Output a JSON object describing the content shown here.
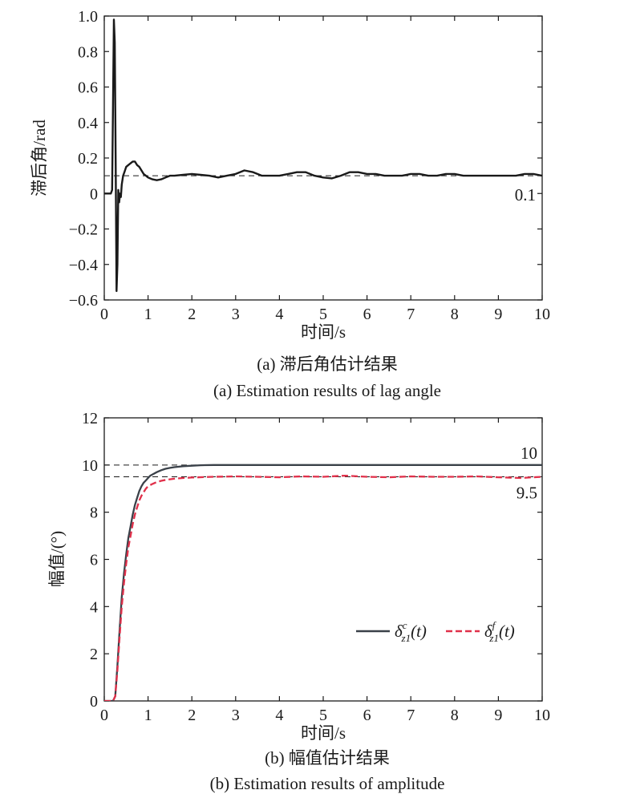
{
  "chart_data": [
    {
      "type": "line",
      "title": "",
      "xlabel": "时间/s",
      "ylabel": "滞后角/rad",
      "xlim": [
        0,
        10
      ],
      "ylim": [
        -0.6,
        1.0
      ],
      "xticks": [
        "0",
        "1",
        "2",
        "3",
        "4",
        "5",
        "6",
        "7",
        "8",
        "9",
        "10"
      ],
      "yticks": [
        "−0.6",
        "−0.4",
        "−0.2",
        "0",
        "0.2",
        "0.4",
        "0.6",
        "0.8",
        "1.0"
      ],
      "caption_cn": "(a) 滞后角估计结果",
      "caption_en": "(a) Estimation results of lag angle",
      "reference_line": {
        "y": 0.1,
        "label": "0.1"
      },
      "series": [
        {
          "color": "#1a1a1a",
          "x": [
            0,
            0.15,
            0.18,
            0.2,
            0.22,
            0.24,
            0.26,
            0.28,
            0.3,
            0.32,
            0.34,
            0.36,
            0.38,
            0.4,
            0.43,
            0.46,
            0.5,
            0.55,
            0.6,
            0.65,
            0.7,
            0.75,
            0.8,
            0.85,
            0.9,
            0.95,
            1.0,
            1.1,
            1.2,
            1.3,
            1.4,
            1.5,
            1.6,
            1.8,
            2.0,
            2.2,
            2.4,
            2.6,
            2.8,
            3.0,
            3.2,
            3.4,
            3.6,
            3.8,
            4.0,
            4.2,
            4.4,
            4.6,
            4.8,
            5.0,
            5.2,
            5.4,
            5.6,
            5.8,
            6.0,
            6.2,
            6.4,
            6.6,
            6.8,
            7.0,
            7.2,
            7.4,
            7.6,
            7.8,
            8.0,
            8.2,
            8.4,
            8.6,
            8.8,
            9.0,
            9.2,
            9.4,
            9.6,
            9.8,
            10.0
          ],
          "y": [
            0.0,
            0.0,
            0.02,
            0.5,
            0.98,
            0.85,
            0.2,
            -0.55,
            -0.4,
            0.02,
            -0.05,
            0.0,
            -0.02,
            0.05,
            0.1,
            0.12,
            0.15,
            0.16,
            0.17,
            0.18,
            0.18,
            0.16,
            0.15,
            0.13,
            0.11,
            0.1,
            0.09,
            0.08,
            0.075,
            0.08,
            0.09,
            0.1,
            0.1,
            0.105,
            0.11,
            0.105,
            0.1,
            0.09,
            0.1,
            0.11,
            0.13,
            0.12,
            0.1,
            0.1,
            0.1,
            0.11,
            0.12,
            0.12,
            0.1,
            0.09,
            0.085,
            0.1,
            0.12,
            0.12,
            0.11,
            0.11,
            0.1,
            0.1,
            0.1,
            0.11,
            0.11,
            0.1,
            0.1,
            0.11,
            0.11,
            0.1,
            0.1,
            0.1,
            0.1,
            0.1,
            0.1,
            0.1,
            0.11,
            0.11,
            0.1
          ]
        }
      ]
    },
    {
      "type": "line",
      "title": "",
      "xlabel": "时间/s",
      "ylabel": "幅值/(°)",
      "xlim": [
        0,
        10
      ],
      "ylim": [
        0,
        12
      ],
      "xticks": [
        "0",
        "1",
        "2",
        "3",
        "4",
        "5",
        "6",
        "7",
        "8",
        "9",
        "10"
      ],
      "yticks": [
        "0",
        "2",
        "4",
        "6",
        "8",
        "10",
        "12"
      ],
      "caption_cn": "(b) 幅值估计结果",
      "caption_en": "(b) Estimation results of amplitude",
      "reference_lines": [
        {
          "y": 10,
          "label": "10"
        },
        {
          "y": 9.5,
          "label": "9.5"
        }
      ],
      "legend": {
        "position": "lower-right"
      },
      "series": [
        {
          "name": "δ_z1^c(t)",
          "color": "#3a4149",
          "style": "solid",
          "x": [
            0,
            0.2,
            0.25,
            0.3,
            0.35,
            0.4,
            0.45,
            0.5,
            0.55,
            0.6,
            0.65,
            0.7,
            0.75,
            0.8,
            0.85,
            0.9,
            0.95,
            1.0,
            1.05,
            1.1,
            1.2,
            1.3,
            1.4,
            1.5,
            1.6,
            1.8,
            2.0,
            2.2,
            2.5,
            3.0,
            4.0,
            5.0,
            6.0,
            7.0,
            8.0,
            9.0,
            10.0
          ],
          "y": [
            0,
            0,
            0.2,
            1.5,
            3.0,
            4.4,
            5.4,
            6.2,
            6.9,
            7.4,
            7.9,
            8.3,
            8.6,
            8.9,
            9.1,
            9.25,
            9.35,
            9.45,
            9.55,
            9.6,
            9.7,
            9.78,
            9.84,
            9.88,
            9.91,
            9.95,
            9.97,
            9.99,
            10.0,
            10.0,
            10.0,
            10.0,
            10.0,
            10.0,
            10.0,
            10.0,
            10.0
          ]
        },
        {
          "name": "δ_z1^f(t)",
          "color": "#e0304a",
          "style": "dashed",
          "x": [
            0,
            0.2,
            0.25,
            0.3,
            0.35,
            0.4,
            0.45,
            0.5,
            0.55,
            0.6,
            0.65,
            0.7,
            0.75,
            0.8,
            0.85,
            0.9,
            0.95,
            1.0,
            1.1,
            1.2,
            1.3,
            1.4,
            1.6,
            1.8,
            2.0,
            2.5,
            3.0,
            3.5,
            4.0,
            4.5,
            5.0,
            5.5,
            6.0,
            6.5,
            7.0,
            7.5,
            8.0,
            8.5,
            9.0,
            9.5,
            10.0
          ],
          "y": [
            0,
            0,
            0.2,
            1.3,
            2.7,
            4.0,
            5.0,
            5.8,
            6.5,
            7.0,
            7.5,
            7.9,
            8.2,
            8.5,
            8.7,
            8.85,
            9.0,
            9.1,
            9.2,
            9.28,
            9.33,
            9.37,
            9.42,
            9.45,
            9.47,
            9.5,
            9.52,
            9.5,
            9.48,
            9.52,
            9.5,
            9.55,
            9.5,
            9.48,
            9.52,
            9.5,
            9.5,
            9.52,
            9.48,
            9.45,
            9.5
          ]
        }
      ]
    }
  ]
}
